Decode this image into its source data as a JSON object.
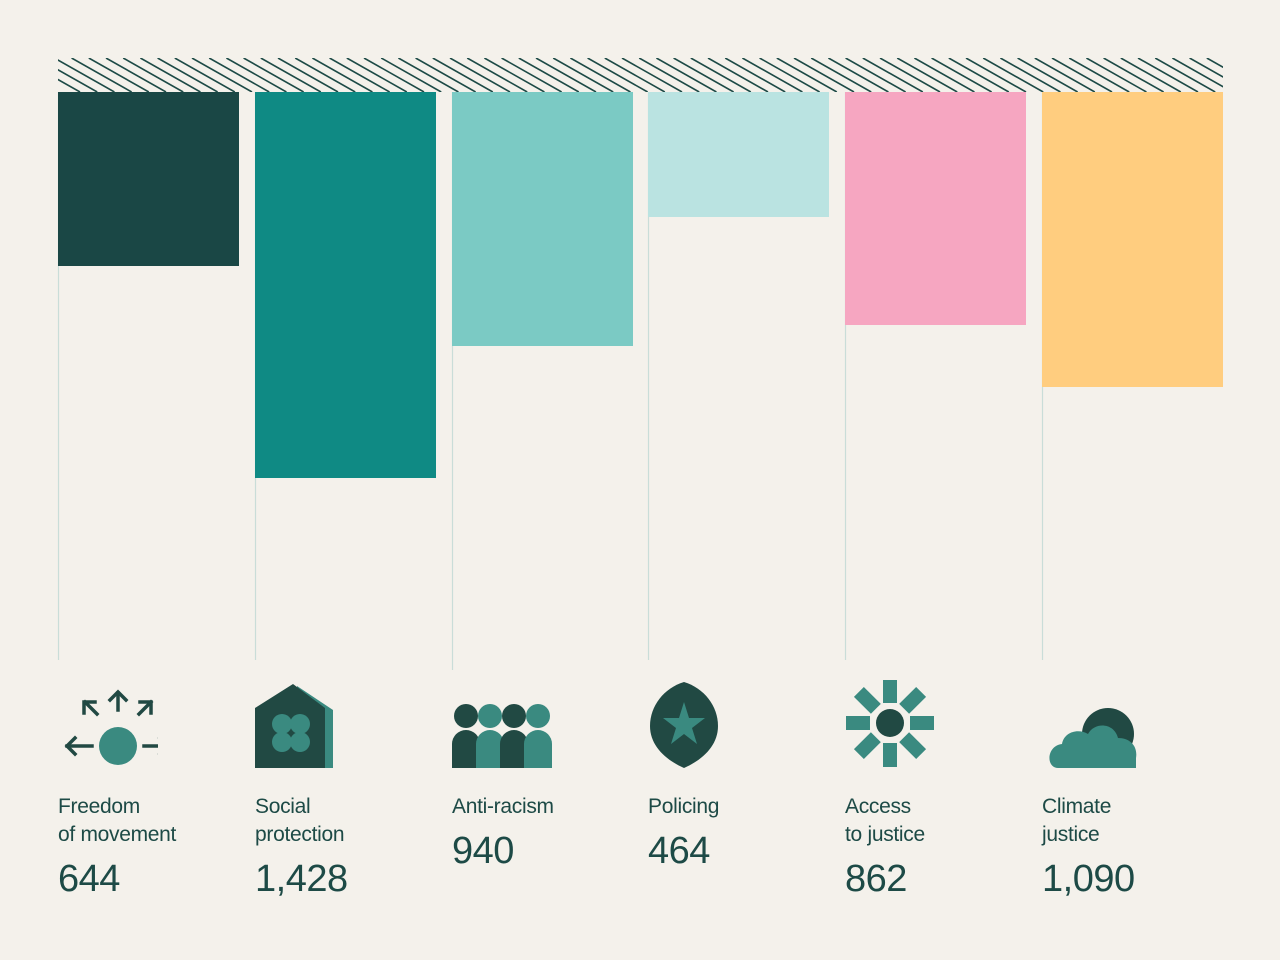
{
  "colors": {
    "background": "#f4f1eb",
    "text": "#1d4a46",
    "hatch": "#1d4a46",
    "guide": "#c9ddd8",
    "icon_dark": "#214943",
    "icon_mid": "#3a8a80"
  },
  "chart_data": {
    "type": "bar",
    "orientation": "vertical-hanging",
    "categories": [
      "Freedom of movement",
      "Social protection",
      "Anti-racism",
      "Policing",
      "Access to justice",
      "Climate justice"
    ],
    "values": [
      644,
      1428,
      940,
      464,
      862,
      1090
    ],
    "value_labels": [
      "644",
      "1,428",
      "940",
      "464",
      "862",
      "1,090"
    ],
    "bar_colors": [
      "#1a4745",
      "#0f8a84",
      "#7bcac4",
      "#bae3e1",
      "#f6a6c1",
      "#ffcd7f"
    ],
    "ylim": [
      0,
      2000
    ],
    "grid": false,
    "legend": "none"
  },
  "items": [
    {
      "label_line1": "Freedom",
      "label_line2": "of movement",
      "value_text": "644",
      "icon": "arrows-outward-icon"
    },
    {
      "label_line1": "Social",
      "label_line2": "protection",
      "value_text": "1,428",
      "icon": "house-icon"
    },
    {
      "label_line1": "Anti-racism",
      "label_line2": "",
      "value_text": "940",
      "icon": "people-group-icon"
    },
    {
      "label_line1": "Policing",
      "label_line2": "",
      "value_text": "464",
      "icon": "shield-star-icon"
    },
    {
      "label_line1": "Access",
      "label_line2": "to justice",
      "value_text": "862",
      "icon": "sunburst-icon"
    },
    {
      "label_line1": "Climate",
      "label_line2": "justice",
      "value_text": "1,090",
      "icon": "sun-cloud-icon"
    }
  ]
}
